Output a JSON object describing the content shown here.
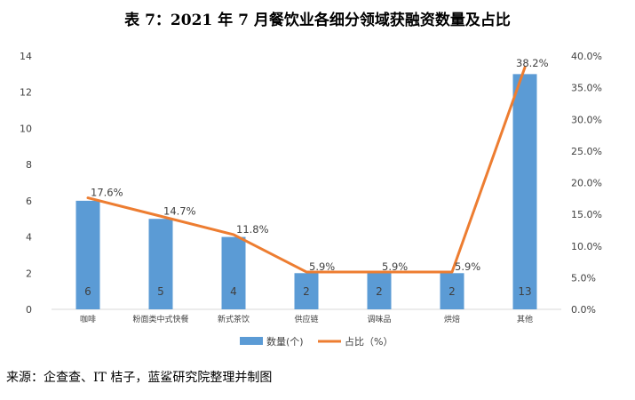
{
  "title": "表 7：2021 年 7 月餐饮业各细分领域获融资数量及占比",
  "source": "来源：企查查、IT 桔子，蓝鲨研究院整理并制图",
  "colors": {
    "bar": "#5B9BD5",
    "line": "#ED7D31",
    "axis": "#D9D9D9",
    "text": "#404040"
  },
  "chart_data": {
    "type": "bar",
    "categories": [
      "咖啡",
      "粉面类中式快餐",
      "新式茶饮",
      "供应链",
      "调味品",
      "烘焙",
      "其他"
    ],
    "series": [
      {
        "name": "数量(个)",
        "type": "bar",
        "axis": "left",
        "values": [
          6,
          5,
          4,
          2,
          2,
          2,
          13
        ],
        "labels": [
          "6",
          "5",
          "4",
          "2",
          "2",
          "2",
          "13"
        ]
      },
      {
        "name": "占比（%）",
        "type": "line",
        "axis": "right",
        "values": [
          17.6,
          14.7,
          11.8,
          5.9,
          5.9,
          5.9,
          38.2
        ],
        "labels": [
          "17.6%",
          "14.7%",
          "11.8%",
          "5.9%",
          "5.9%",
          "5.9%",
          "38.2%"
        ]
      }
    ],
    "y_left": {
      "min": 0,
      "max": 14,
      "ticks": [
        "0",
        "2",
        "4",
        "6",
        "8",
        "10",
        "12",
        "14"
      ]
    },
    "y_right": {
      "min": 0,
      "max": 40,
      "ticks": [
        "0.0%",
        "5.0%",
        "10.0%",
        "15.0%",
        "20.0%",
        "25.0%",
        "30.0%",
        "35.0%",
        "40.0%"
      ]
    },
    "legend": "bottom",
    "grid": false
  }
}
